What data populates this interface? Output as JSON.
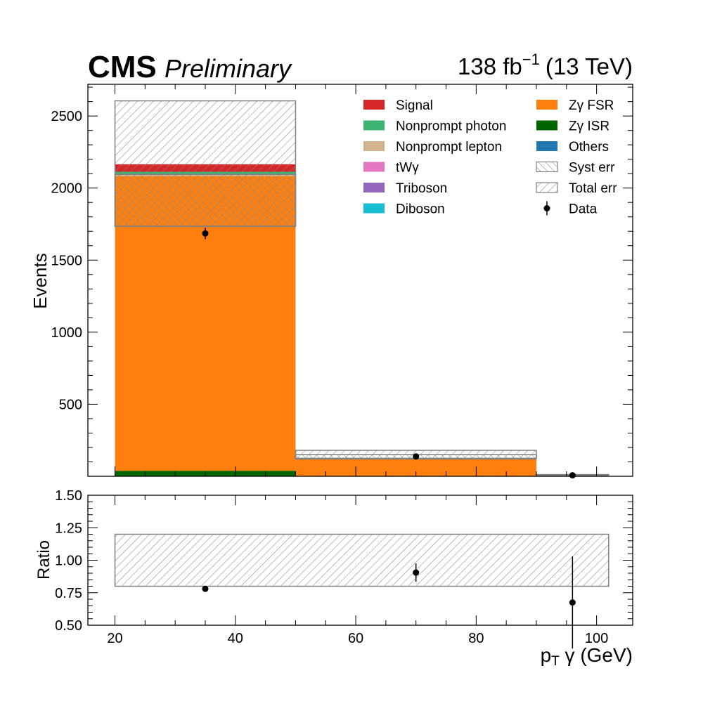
{
  "header": {
    "experiment": "CMS",
    "status": "Preliminary",
    "lumi_value": "138 fb",
    "lumi_exponent": "−1",
    "energy": "(13 TeV)"
  },
  "chart_data": [
    {
      "panel": "main",
      "type": "stacked-histogram",
      "ylabel": "Events",
      "xlim": [
        15.5,
        106
      ],
      "ylim": [
        0,
        2720
      ],
      "yticks": [
        500,
        1000,
        1500,
        2000,
        2500
      ],
      "bin_edges": [
        20,
        50,
        90,
        102
      ],
      "stack": [
        {
          "name": "Zγ ISR",
          "color": "#006400",
          "values": [
            38,
            0,
            0
          ]
        },
        {
          "name": "Zγ FSR",
          "color": "#ff7f0e",
          "values": [
            2045,
            120,
            5
          ]
        },
        {
          "name": "Others",
          "color": "#1f77b4",
          "values": [
            0,
            0,
            0
          ]
        },
        {
          "name": "Diboson",
          "color": "#17becf",
          "values": [
            0,
            0,
            0
          ]
        },
        {
          "name": "Triboson",
          "color": "#9467bd",
          "values": [
            0,
            0,
            0
          ]
        },
        {
          "name": "tWγ",
          "color": "#e377c2",
          "values": [
            0,
            0,
            0
          ]
        },
        {
          "name": "Nonprompt lepton",
          "color": "#d2b48c",
          "values": [
            15,
            1,
            4
          ]
        },
        {
          "name": "Nonprompt photon",
          "color": "#3cb371",
          "values": [
            15,
            1,
            0
          ]
        },
        {
          "name": "Signal",
          "color": "#d62728",
          "values": [
            52,
            2,
            0
          ]
        }
      ],
      "syst_err": [
        [
          1735,
          2095
        ],
        [
          120,
          150
        ],
        [
          5,
          8
        ]
      ],
      "total_err": [
        [
          1735,
          2605
        ],
        [
          125,
          180
        ],
        [
          3,
          12
        ]
      ],
      "data": {
        "x": [
          35,
          70,
          96
        ],
        "y": [
          1685,
          138,
          7
        ],
        "yerr": [
          40,
          12,
          3
        ]
      },
      "legend_left": [
        {
          "label": "Signal",
          "color": "#d62728",
          "style": "fill"
        },
        {
          "label": "Nonprompt photon",
          "color": "#3cb371",
          "style": "fill"
        },
        {
          "label": "Nonprompt lepton",
          "color": "#d2b48c",
          "style": "fill"
        },
        {
          "label": "tWγ",
          "color": "#e377c2",
          "style": "fill"
        },
        {
          "label": "Triboson",
          "color": "#9467bd",
          "style": "fill"
        },
        {
          "label": "Diboson",
          "color": "#17becf",
          "style": "fill"
        }
      ],
      "legend_right": [
        {
          "label": "Zγ FSR",
          "color": "#ff7f0e",
          "style": "fill"
        },
        {
          "label": "Zγ ISR",
          "color": "#006400",
          "style": "fill"
        },
        {
          "label": "Others",
          "color": "#1f77b4",
          "style": "fill"
        },
        {
          "label": "Syst err",
          "color": "#808080",
          "style": "hatch-fwd"
        },
        {
          "label": "Total err",
          "color": "#808080",
          "style": "hatch-back"
        },
        {
          "label": "Data",
          "color": "#000000",
          "style": "marker"
        }
      ],
      "legend_placement": "top-right"
    },
    {
      "panel": "ratio",
      "type": "ratio",
      "ylabel": "Ratio",
      "xlabel_main": "p",
      "xlabel_sub": "T",
      "xlabel_rest": " γ (GeV)",
      "xlim": [
        15.5,
        106
      ],
      "ylim": [
        0.5,
        1.5
      ],
      "yticks": [
        "0.50",
        "0.75",
        "1.00",
        "1.25",
        "1.50"
      ],
      "xticks": [
        20,
        40,
        60,
        80,
        100
      ],
      "band": {
        "x": [
          20,
          102
        ],
        "low": 0.8,
        "high": 1.2
      },
      "points": {
        "x": [
          35,
          70,
          96
        ],
        "y": [
          0.78,
          0.905,
          0.675
        ],
        "ylow": [
          0.765,
          0.835,
          0.32
        ],
        "yhigh": [
          0.795,
          0.975,
          1.03
        ]
      }
    }
  ]
}
